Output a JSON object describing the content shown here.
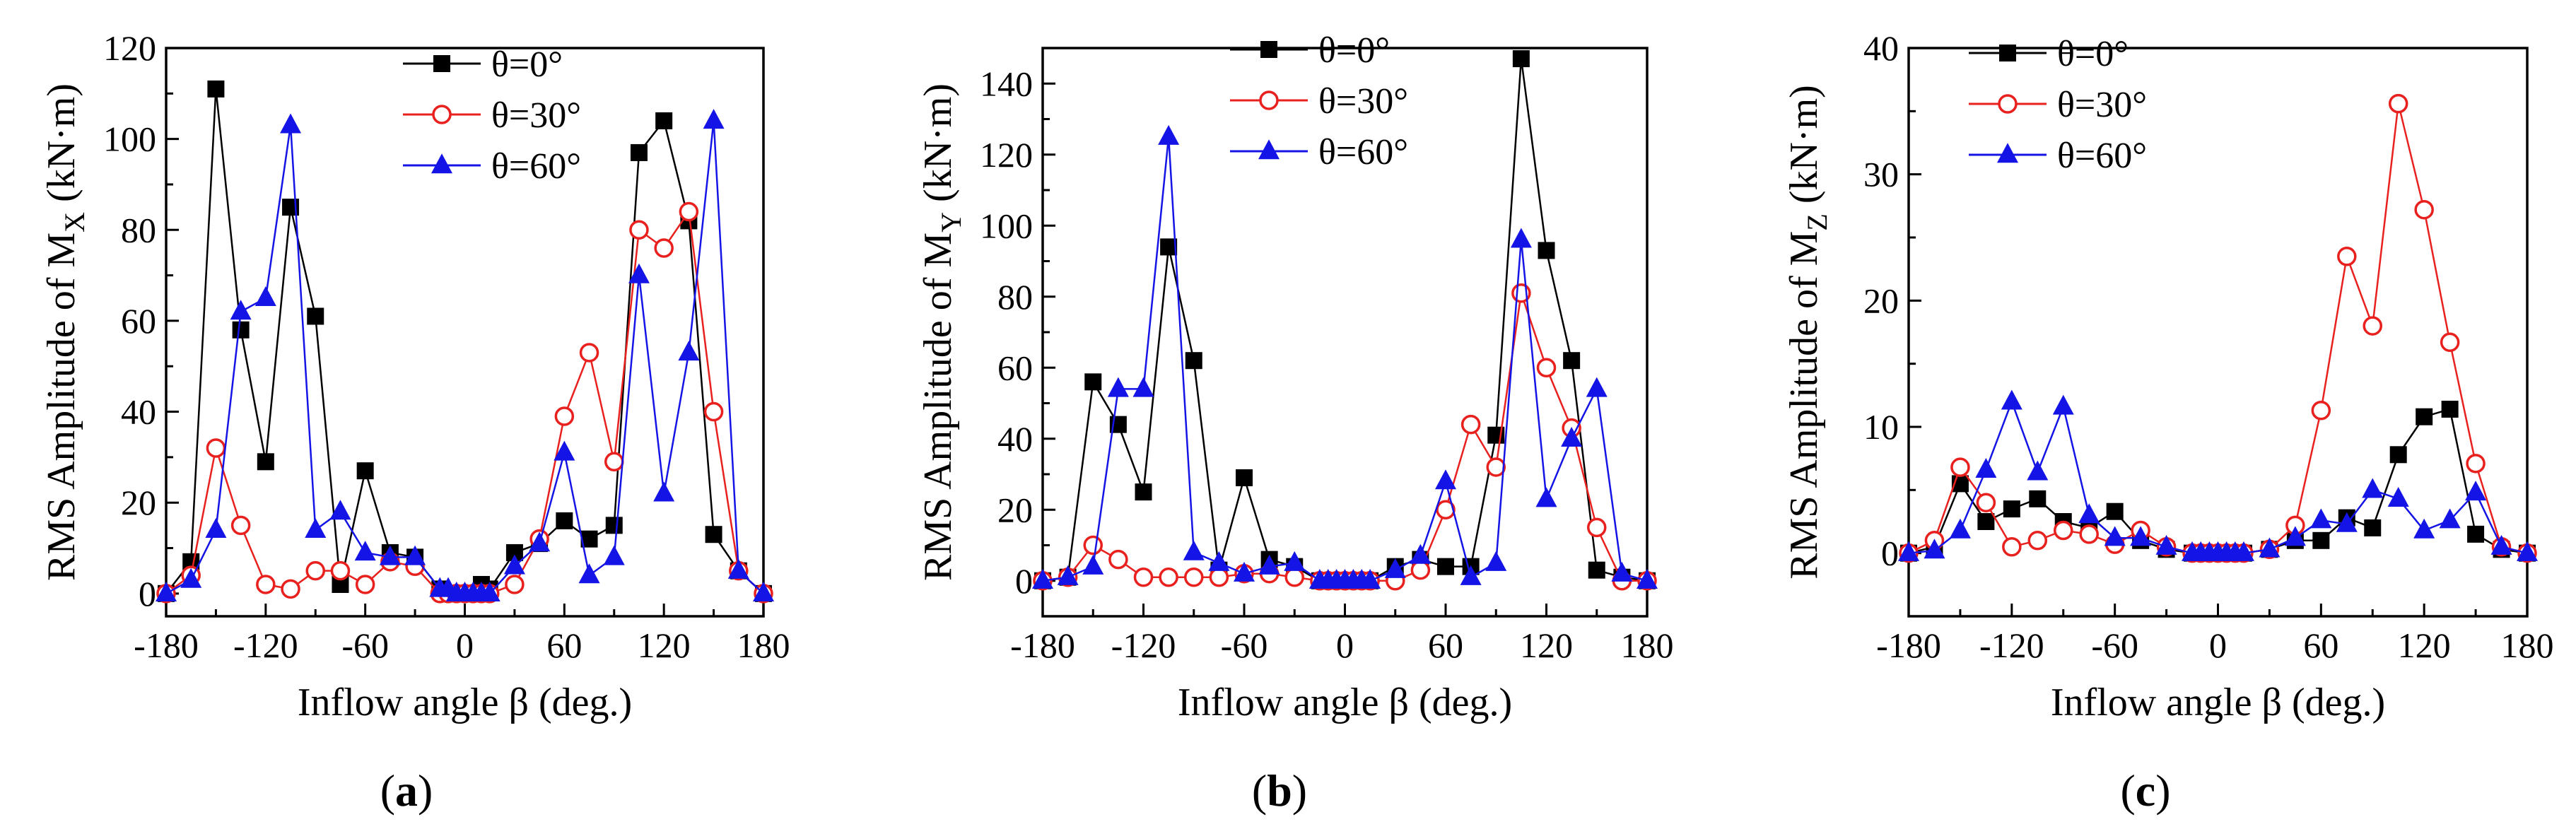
{
  "chart_data": [
    {
      "type": "line",
      "panel_label": "a",
      "xlabel": "Inflow angle β (deg.)",
      "ylabel_main": "RMS Amplitude of M",
      "ylabel_sub": "X",
      "ylabel_unit": " (kN·m)",
      "xlim": [
        -180,
        180
      ],
      "ylim": [
        -5,
        120
      ],
      "xticks": [
        "-180",
        "-120",
        "-60",
        "0",
        "60",
        "120",
        "180"
      ],
      "yticks": [
        "0",
        "20",
        "40",
        "60",
        "80",
        "100",
        "120"
      ],
      "legend_position": "top-center",
      "x": [
        -180,
        -165,
        -150,
        -135,
        -120,
        -105,
        -90,
        -75,
        -60,
        -45,
        -30,
        -15,
        -10,
        -5,
        0,
        5,
        10,
        15,
        30,
        45,
        60,
        75,
        90,
        105,
        120,
        135,
        150,
        165,
        180
      ],
      "series": [
        {
          "name": "θ=0°",
          "color": "#000000",
          "marker": "square",
          "values": [
            0,
            7,
            111,
            58,
            29,
            85,
            61,
            2,
            27,
            9,
            8,
            1,
            0,
            0,
            0,
            0,
            2,
            1,
            9,
            11,
            16,
            12,
            15,
            97,
            104,
            82,
            13,
            5,
            0
          ]
        },
        {
          "name": "θ=30°",
          "color": "#e8201e",
          "marker": "circle-open",
          "values": [
            0,
            4,
            32,
            15,
            2,
            1,
            5,
            5,
            2,
            7,
            6,
            0,
            0,
            0,
            0,
            0,
            0,
            0,
            2,
            12,
            39,
            53,
            29,
            80,
            76,
            84,
            40,
            5,
            0
          ]
        },
        {
          "name": "θ=60°",
          "color": "#1414e6",
          "marker": "triangle",
          "values": [
            0,
            3,
            14,
            62,
            65,
            103,
            14,
            18,
            9,
            8,
            8,
            1,
            1,
            0,
            0,
            0,
            0,
            0,
            6,
            11,
            31,
            4,
            8,
            70,
            22,
            53,
            104,
            5,
            0
          ]
        }
      ]
    },
    {
      "type": "line",
      "panel_label": "b",
      "xlabel": "Inflow angle β (deg.)",
      "ylabel_main": "RMS Amplitude of M",
      "ylabel_sub": "Y",
      "ylabel_unit": " (kN·m)",
      "xlim": [
        -180,
        180
      ],
      "ylim": [
        -10,
        150
      ],
      "xticks": [
        "-180",
        "-120",
        "-60",
        "0",
        "60",
        "120",
        "180"
      ],
      "yticks": [
        "0",
        "20",
        "40",
        "60",
        "80",
        "100",
        "120",
        "140"
      ],
      "legend_position": "top-center",
      "x": [
        -180,
        -165,
        -150,
        -135,
        -120,
        -105,
        -90,
        -75,
        -60,
        -45,
        -30,
        -15,
        -10,
        -5,
        0,
        5,
        10,
        15,
        30,
        45,
        60,
        75,
        90,
        105,
        120,
        135,
        150,
        165,
        180
      ],
      "series": [
        {
          "name": "θ=0°",
          "color": "#000000",
          "marker": "square",
          "values": [
            0,
            1,
            56,
            44,
            25,
            94,
            62,
            3,
            29,
            6,
            4,
            0,
            0,
            0,
            0,
            0,
            0,
            0,
            4,
            6,
            4,
            4,
            41,
            147,
            93,
            62,
            3,
            1,
            0
          ]
        },
        {
          "name": "θ=30°",
          "color": "#e8201e",
          "marker": "circle-open",
          "values": [
            0,
            1,
            10,
            6,
            1,
            1,
            1,
            1,
            2,
            2,
            1,
            0,
            0,
            0,
            0,
            0,
            0,
            0,
            0,
            3,
            20,
            44,
            32,
            81,
            60,
            43,
            15,
            0,
            0
          ]
        },
        {
          "name": "θ=60°",
          "color": "#1414e6",
          "marker": "triangle",
          "values": [
            0,
            1,
            4,
            54,
            54,
            125,
            8,
            5,
            2,
            4,
            5,
            0,
            0,
            0,
            0,
            0,
            0,
            0,
            3,
            7,
            28,
            1,
            5,
            96,
            23,
            40,
            54,
            2,
            0
          ]
        }
      ]
    },
    {
      "type": "line",
      "panel_label": "c",
      "xlabel": "Inflow angle β (deg.)",
      "ylabel_main": "RMS Amplitude of M",
      "ylabel_sub": "Z",
      "ylabel_unit": " (kN·m)",
      "xlim": [
        -180,
        180
      ],
      "ylim": [
        -5,
        40
      ],
      "xticks": [
        "-180",
        "-120",
        "-60",
        "0",
        "60",
        "120",
        "180"
      ],
      "yticks": [
        "0",
        "10",
        "20",
        "30",
        "40"
      ],
      "legend_position": "top-left",
      "x": [
        -180,
        -165,
        -150,
        -135,
        -120,
        -105,
        -90,
        -75,
        -60,
        -45,
        -30,
        -15,
        -10,
        -5,
        0,
        5,
        10,
        15,
        30,
        45,
        60,
        75,
        90,
        105,
        120,
        135,
        150,
        165,
        180
      ],
      "series": [
        {
          "name": "θ=0°",
          "color": "#000000",
          "marker": "square",
          "values": [
            0,
            0.5,
            5.5,
            2.5,
            3.5,
            4.3,
            2.5,
            2,
            3.3,
            1,
            0.3,
            0,
            0,
            0,
            0,
            0,
            0,
            0,
            0.3,
            1,
            1,
            2.8,
            2,
            7.8,
            10.8,
            11.4,
            1.5,
            0.3,
            0
          ]
        },
        {
          "name": "θ=30°",
          "color": "#e8201e",
          "marker": "circle-open",
          "values": [
            0,
            1,
            6.8,
            4,
            0.5,
            1,
            1.8,
            1.5,
            0.7,
            1.8,
            0.5,
            0,
            0,
            0,
            0,
            0,
            0,
            0,
            0.3,
            2.2,
            11.3,
            23.5,
            18,
            35.6,
            27.2,
            16.7,
            7.1,
            0.5,
            0
          ]
        },
        {
          "name": "θ=60°",
          "color": "#1414e6",
          "marker": "triangle",
          "values": [
            0,
            0.2,
            1.8,
            6.6,
            12,
            6.4,
            11.6,
            3,
            1.2,
            1.2,
            0.5,
            0,
            0,
            0,
            0,
            0,
            0,
            0,
            0.3,
            1.2,
            2.6,
            2.3,
            5,
            4.3,
            1.8,
            2.6,
            4.8,
            0.5,
            0
          ]
        }
      ]
    }
  ]
}
